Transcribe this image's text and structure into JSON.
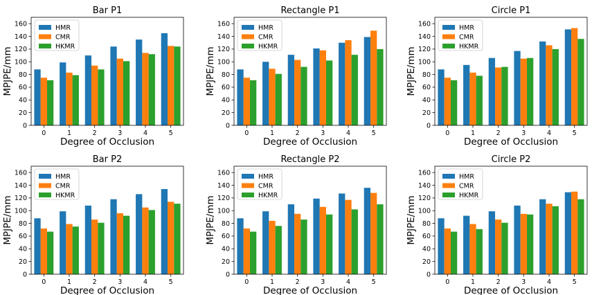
{
  "figure": {
    "background": "#ffffff",
    "series_colors": [
      "#1f77b4",
      "#ff7f0e",
      "#2ca02c"
    ]
  },
  "chart_data": [
    {
      "type": "bar",
      "title": "Bar P1",
      "xlabel": "Degree of Occlusion",
      "ylabel": "MPJPE/mm",
      "categories": [
        "0",
        "1",
        "2",
        "3",
        "4",
        "5"
      ],
      "ylim": [
        0,
        170
      ],
      "yticks": [
        0,
        20,
        40,
        60,
        80,
        100,
        120,
        140,
        160
      ],
      "legend": "top-left",
      "grid": false,
      "series": [
        {
          "name": "HMR",
          "values": [
            88,
            99,
            110,
            124,
            135,
            145
          ]
        },
        {
          "name": "CMR",
          "values": [
            75,
            83,
            94,
            105,
            114,
            125
          ]
        },
        {
          "name": "HKMR",
          "values": [
            71,
            79,
            88,
            101,
            112,
            124
          ]
        }
      ]
    },
    {
      "type": "bar",
      "title": "Rectangle P1",
      "xlabel": "Degree of Occlusion",
      "ylabel": "MPJPE/mm",
      "categories": [
        "0",
        "1",
        "2",
        "3",
        "4",
        "5"
      ],
      "ylim": [
        0,
        170
      ],
      "yticks": [
        0,
        20,
        40,
        60,
        80,
        100,
        120,
        140,
        160
      ],
      "legend": "top-left",
      "grid": false,
      "series": [
        {
          "name": "HMR",
          "values": [
            88,
            100,
            111,
            121,
            130,
            139
          ]
        },
        {
          "name": "CMR",
          "values": [
            75,
            89,
            103,
            118,
            134,
            149
          ]
        },
        {
          "name": "HKMR",
          "values": [
            71,
            81,
            92,
            102,
            111,
            120
          ]
        }
      ]
    },
    {
      "type": "bar",
      "title": "Circle P1",
      "xlabel": "Degree of Occlusion",
      "ylabel": "MPJPE/mm",
      "categories": [
        "0",
        "1",
        "2",
        "3",
        "4",
        "5"
      ],
      "ylim": [
        0,
        170
      ],
      "yticks": [
        0,
        20,
        40,
        60,
        80,
        100,
        120,
        140,
        160
      ],
      "legend": "top-left",
      "grid": false,
      "series": [
        {
          "name": "HMR",
          "values": [
            88,
            95,
            106,
            117,
            132,
            151
          ]
        },
        {
          "name": "CMR",
          "values": [
            75,
            83,
            91,
            105,
            126,
            153
          ]
        },
        {
          "name": "HKMR",
          "values": [
            71,
            78,
            92,
            106,
            120,
            136
          ]
        }
      ]
    },
    {
      "type": "bar",
      "title": "Bar P2",
      "xlabel": "Degree of Occlusion",
      "ylabel": "MPJPE/mm",
      "categories": [
        "0",
        "1",
        "2",
        "3",
        "4",
        "5"
      ],
      "ylim": [
        0,
        170
      ],
      "yticks": [
        0,
        20,
        40,
        60,
        80,
        100,
        120,
        140,
        160
      ],
      "legend": "top-left",
      "grid": false,
      "series": [
        {
          "name": "HMR",
          "values": [
            88,
            99,
            108,
            118,
            126,
            134
          ]
        },
        {
          "name": "CMR",
          "values": [
            72,
            79,
            86,
            96,
            105,
            114
          ]
        },
        {
          "name": "HKMR",
          "values": [
            67,
            75,
            81,
            92,
            101,
            111
          ]
        }
      ]
    },
    {
      "type": "bar",
      "title": "Rectangle P2",
      "xlabel": "Degree of Occlusion",
      "ylabel": "MPJPE/mm",
      "categories": [
        "0",
        "1",
        "2",
        "3",
        "4",
        "5"
      ],
      "ylim": [
        0,
        170
      ],
      "yticks": [
        0,
        20,
        40,
        60,
        80,
        100,
        120,
        140,
        160
      ],
      "legend": "top-left",
      "grid": false,
      "series": [
        {
          "name": "HMR",
          "values": [
            88,
            99,
            110,
            119,
            127,
            136
          ]
        },
        {
          "name": "CMR",
          "values": [
            72,
            84,
            95,
            106,
            117,
            128
          ]
        },
        {
          "name": "HKMR",
          "values": [
            67,
            76,
            86,
            94,
            102,
            110
          ]
        }
      ]
    },
    {
      "type": "bar",
      "title": "Circle P2",
      "xlabel": "Degree of Occlusion",
      "ylabel": "MPJPE/mm",
      "categories": [
        "0",
        "1",
        "2",
        "3",
        "4",
        "5"
      ],
      "ylim": [
        0,
        170
      ],
      "yticks": [
        0,
        20,
        40,
        60,
        80,
        100,
        120,
        140,
        160
      ],
      "legend": "top-left",
      "grid": false,
      "series": [
        {
          "name": "HMR",
          "values": [
            88,
            92,
            99,
            108,
            118,
            129
          ]
        },
        {
          "name": "CMR",
          "values": [
            72,
            79,
            86,
            95,
            111,
            130
          ]
        },
        {
          "name": "HKMR",
          "values": [
            67,
            71,
            81,
            94,
            107,
            118
          ]
        }
      ]
    }
  ]
}
